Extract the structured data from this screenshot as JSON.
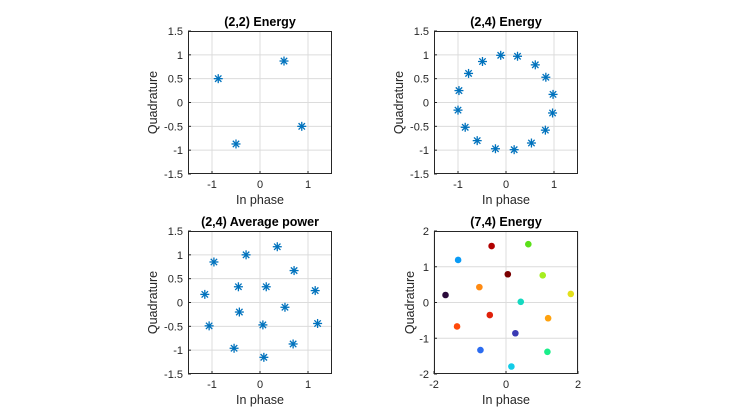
{
  "chart_data": [
    {
      "type": "scatter",
      "title": "(2,2) Energy",
      "xlabel": "In phase",
      "ylabel": "Quadrature",
      "xlim": [
        -1.5,
        1.5
      ],
      "ylim": [
        -1.5,
        1.5
      ],
      "xticks": [
        -1,
        0,
        1
      ],
      "yticks": [
        -1.5,
        -1,
        -0.5,
        0,
        0.5,
        1,
        1.5
      ],
      "grid": true,
      "marker": "asterisk",
      "color": "#0072BD",
      "points": [
        [
          -0.87,
          0.5
        ],
        [
          0.5,
          0.87
        ],
        [
          0.87,
          -0.5
        ],
        [
          -0.5,
          -0.87
        ]
      ]
    },
    {
      "type": "scatter",
      "title": "(2,4) Energy",
      "xlabel": "In phase",
      "ylabel": "Quadrature",
      "xlim": [
        -1.5,
        1.5
      ],
      "ylim": [
        -1.5,
        1.5
      ],
      "xticks": [
        -1,
        0,
        1
      ],
      "yticks": [
        -1.5,
        -1,
        -0.5,
        0,
        0.5,
        1,
        1.5
      ],
      "grid": true,
      "marker": "asterisk",
      "color": "#0072BD",
      "points": [
        [
          -0.11,
          0.99
        ],
        [
          0.24,
          0.97
        ],
        [
          0.61,
          0.79
        ],
        [
          0.83,
          0.53
        ],
        [
          0.98,
          0.17
        ],
        [
          0.97,
          -0.22
        ],
        [
          0.82,
          -0.58
        ],
        [
          0.53,
          -0.85
        ],
        [
          0.17,
          -0.99
        ],
        [
          -0.22,
          -0.97
        ],
        [
          -0.6,
          -0.8
        ],
        [
          -0.85,
          -0.52
        ],
        [
          -1.0,
          -0.16
        ],
        [
          -0.98,
          0.25
        ],
        [
          -0.78,
          0.61
        ],
        [
          -0.49,
          0.86
        ]
      ]
    },
    {
      "type": "scatter",
      "title": "(2,4) Average power",
      "xlabel": "In phase",
      "ylabel": "Quadrature",
      "xlim": [
        -1.5,
        1.5
      ],
      "ylim": [
        -1.5,
        1.5
      ],
      "xticks": [
        -1,
        0,
        1
      ],
      "yticks": [
        -1.5,
        -1,
        -0.5,
        0,
        0.5,
        1,
        1.5
      ],
      "grid": true,
      "marker": "asterisk",
      "color": "#0072BD",
      "points": [
        [
          -0.96,
          0.85
        ],
        [
          -0.29,
          1.0
        ],
        [
          0.36,
          1.17
        ],
        [
          0.71,
          0.67
        ],
        [
          -1.15,
          0.17
        ],
        [
          -0.45,
          0.33
        ],
        [
          0.13,
          0.33
        ],
        [
          1.15,
          0.25
        ],
        [
          -0.43,
          -0.2
        ],
        [
          0.52,
          -0.1
        ],
        [
          -1.06,
          -0.49
        ],
        [
          0.06,
          -0.47
        ],
        [
          1.2,
          -0.44
        ],
        [
          -0.54,
          -0.96
        ],
        [
          0.69,
          -0.87
        ],
        [
          0.08,
          -1.15
        ]
      ]
    },
    {
      "type": "scatter",
      "title": "(7,4) Energy",
      "xlabel": "In phase",
      "ylabel": "Quadrature",
      "xlim": [
        -2,
        2
      ],
      "ylim": [
        -2,
        2
      ],
      "xticks": [
        -2,
        0,
        2
      ],
      "yticks": [
        -2,
        -1,
        0,
        1,
        2
      ],
      "grid": true,
      "marker": "filled-circle",
      "points": [
        [
          -0.4,
          1.58
        ],
        [
          0.62,
          1.63
        ],
        [
          -1.33,
          1.19
        ],
        [
          0.05,
          0.79
        ],
        [
          1.02,
          0.76
        ],
        [
          -0.74,
          0.43
        ],
        [
          -1.68,
          0.21
        ],
        [
          0.41,
          0.02
        ],
        [
          1.8,
          0.24
        ],
        [
          -0.45,
          -0.35
        ],
        [
          1.17,
          -0.44
        ],
        [
          -1.36,
          -0.67
        ],
        [
          0.26,
          -0.86
        ],
        [
          -0.71,
          -1.33
        ],
        [
          1.15,
          -1.38
        ],
        [
          0.15,
          -1.79
        ]
      ],
      "colors": [
        "#B00000",
        "#5BE01A",
        "#0A9BF5",
        "#7A0000",
        "#A6EE1F",
        "#FF8A12",
        "#2A0A3A",
        "#14D9C0",
        "#E3E01B",
        "#E0210A",
        "#FFA20E",
        "#FF4A0A",
        "#3A3AB4",
        "#2C6CF0",
        "#1AEE8A",
        "#12CCE8"
      ]
    }
  ]
}
